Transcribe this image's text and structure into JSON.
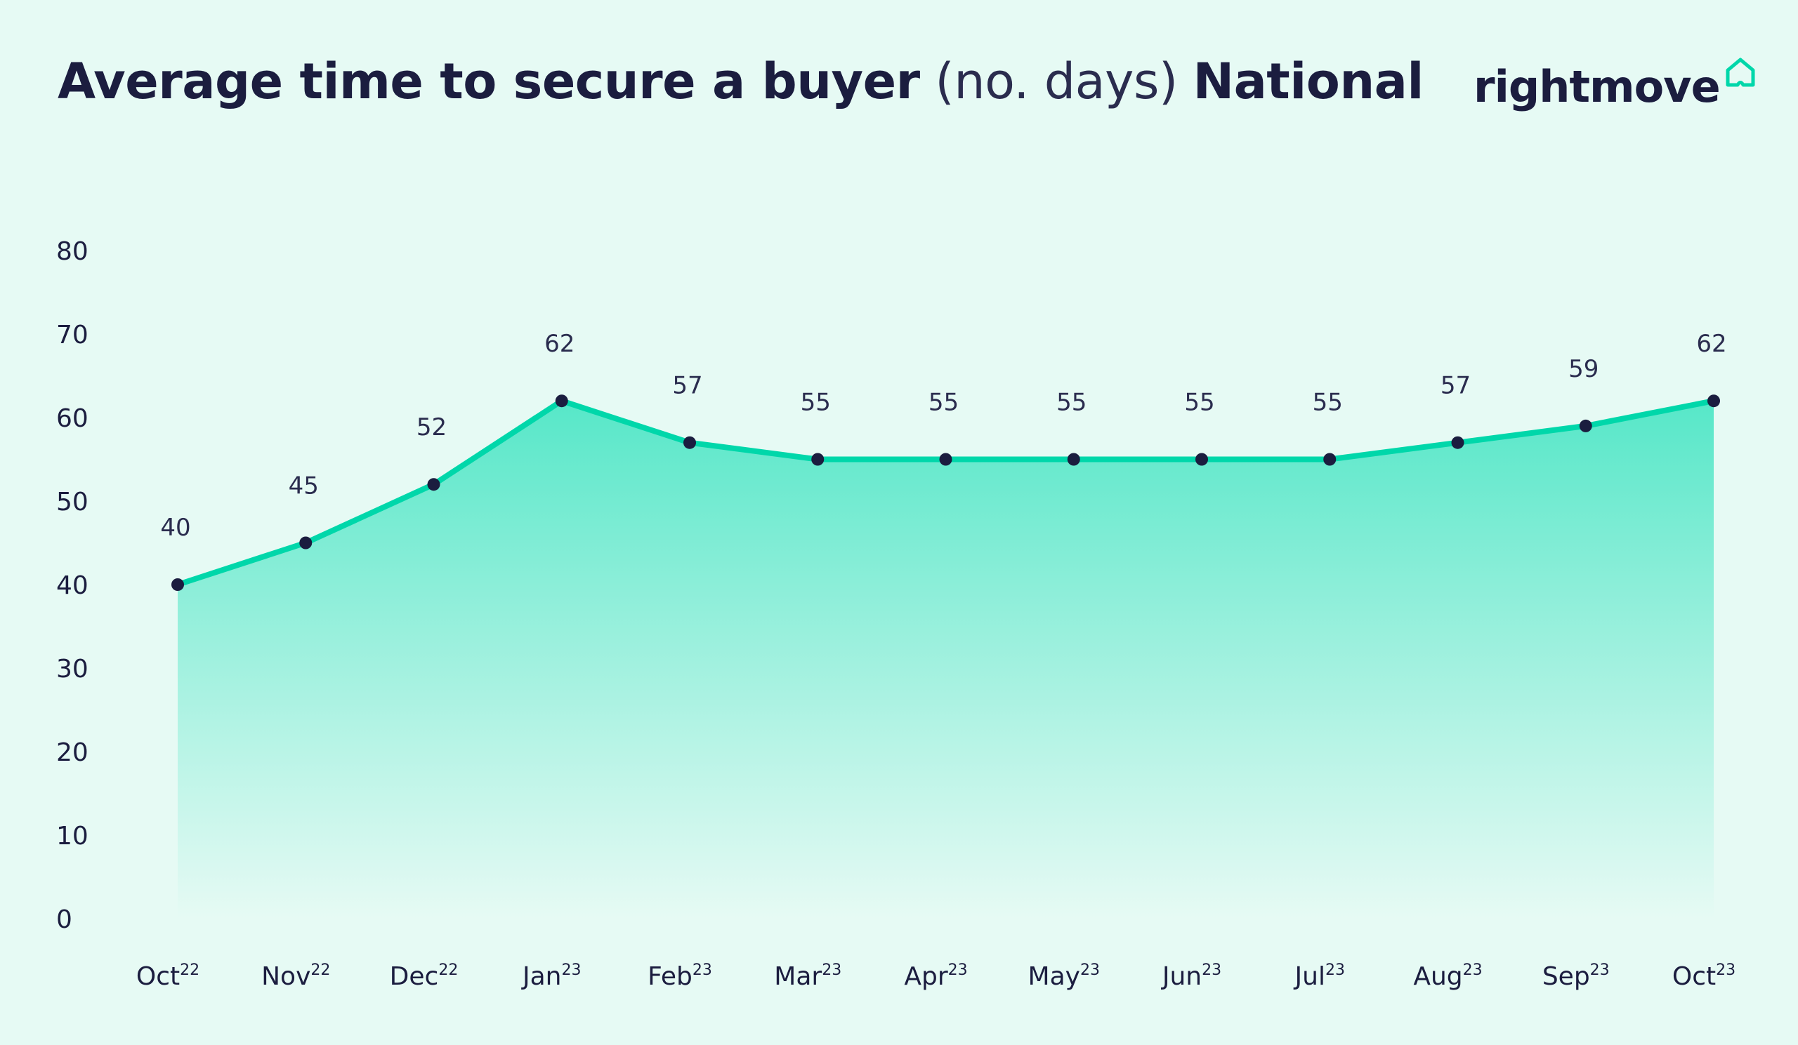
{
  "title": {
    "part1": "Average time to secure a buyer",
    "part2": " (no. days) ",
    "part3": "National"
  },
  "logo": {
    "text": "rightmove",
    "icon": "house-outline-icon"
  },
  "colors": {
    "background": "#e6faf4",
    "line": "#00d7aa",
    "area_top": "#4fe6c6",
    "area_bottom": "#e6faf4",
    "marker": "#1b1d3f",
    "text": "#1b1d3f"
  },
  "chart_data": {
    "type": "area",
    "categories": [
      {
        "month": "Oct",
        "year": "22"
      },
      {
        "month": "Nov",
        "year": "22"
      },
      {
        "month": "Dec",
        "year": "22"
      },
      {
        "month": "Jan",
        "year": "23"
      },
      {
        "month": "Feb",
        "year": "23"
      },
      {
        "month": "Mar",
        "year": "23"
      },
      {
        "month": "Apr",
        "year": "23"
      },
      {
        "month": "May",
        "year": "23"
      },
      {
        "month": "Jun",
        "year": "23"
      },
      {
        "month": "Jul",
        "year": "23"
      },
      {
        "month": "Aug",
        "year": "23"
      },
      {
        "month": "Sep",
        "year": "23"
      },
      {
        "month": "Oct",
        "year": "23"
      }
    ],
    "values": [
      40,
      45,
      52,
      62,
      57,
      55,
      55,
      55,
      55,
      55,
      57,
      59,
      62
    ],
    "ylim": [
      0,
      80
    ],
    "yticks": [
      0,
      10,
      20,
      30,
      40,
      50,
      60,
      70,
      80
    ],
    "data_labels": true,
    "grid": false,
    "legend": "none"
  }
}
